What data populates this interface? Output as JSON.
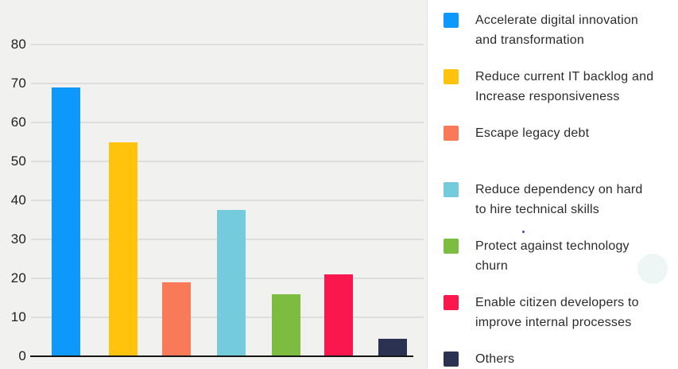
{
  "chart_data": {
    "type": "bar",
    "categories": [
      "Accelerate digital innovation and transformation",
      "Reduce current IT backlog and Increase responsiveness",
      "Escape legacy debt",
      "Reduce dependency on hard to hire technical skills",
      "Protect against technology churn",
      "Enable citizen developers to improve internal processes",
      "Others"
    ],
    "values": [
      69,
      55,
      19,
      37.5,
      16,
      21,
      4.5
    ],
    "bar_colors": [
      "#0D99FC",
      "#FFC30D",
      "#F97A58",
      "#74CBDC",
      "#7CBC41",
      "#F9174E",
      "#2B3151"
    ],
    "title": "",
    "xlabel": "",
    "ylabel": "",
    "ylim": [
      0,
      85
    ],
    "yticks": [
      0,
      10,
      20,
      30,
      40,
      50,
      60,
      70,
      80
    ],
    "grid": true,
    "legend_position": "right"
  },
  "legend": {
    "items": [
      {
        "lines": [
          "Accelerate digital innovation",
          "and transformation"
        ],
        "color": "#0D99FC"
      },
      {
        "lines": [
          "Reduce current IT backlog and",
          "Increase responsiveness"
        ],
        "color": "#FFC30D"
      },
      {
        "lines": [
          "Escape legacy debt"
        ],
        "color": "#F97A58"
      },
      {
        "lines": [
          "Reduce dependency on hard",
          "to hire technical skills"
        ],
        "color": "#74CBDC"
      },
      {
        "lines": [
          "Protect against technology",
          "churn"
        ],
        "color": "#7CBC41"
      },
      {
        "lines": [
          "Enable citizen developers to",
          "improve internal processes"
        ],
        "color": "#F9174E"
      },
      {
        "lines": [
          "Others"
        ],
        "color": "#2B3151"
      }
    ]
  },
  "colors": {
    "chart_background": "#F1F1F0",
    "legend_background": "#FFFFFF",
    "gridline": "#DEDEDE",
    "axis_line": "#161616",
    "tick_text": "#1F1F1F",
    "legend_text": "#2B2B2B",
    "divider": "#E3E3E3",
    "faint_circle": "#EDF6F5",
    "stray_dot": "#3A43D8"
  }
}
